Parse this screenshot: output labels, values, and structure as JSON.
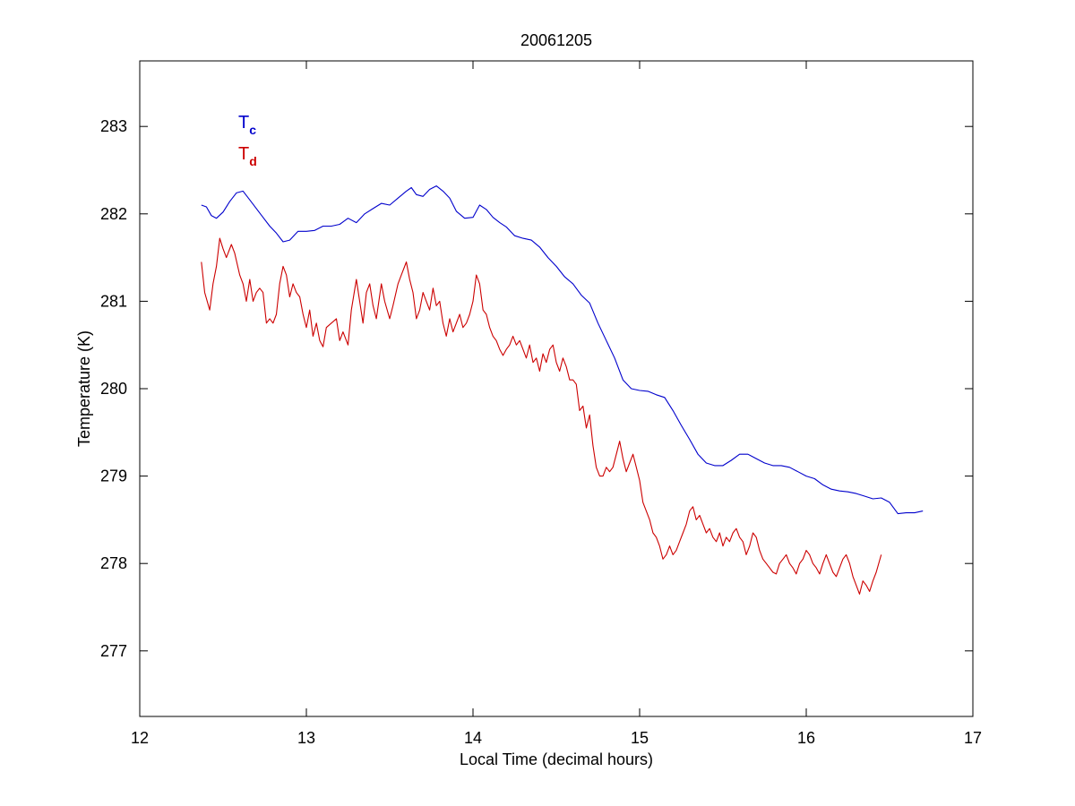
{
  "chart_data": {
    "type": "line",
    "title": "20061205",
    "xlabel": "Local Time (decimal hours)",
    "ylabel": "Temperature (K)",
    "xlim": [
      12,
      17
    ],
    "ylim": [
      276.25,
      283.75
    ],
    "xticks": [
      12,
      13,
      14,
      15,
      16,
      17
    ],
    "yticks": [
      277,
      278,
      279,
      280,
      281,
      282,
      283
    ],
    "grid": false,
    "legend_position": "top-left",
    "series": [
      {
        "name": "T",
        "subscript": "c",
        "color": "#0000cc",
        "points": [
          [
            12.37,
            282.1
          ],
          [
            12.4,
            282.08
          ],
          [
            12.43,
            281.98
          ],
          [
            12.46,
            281.95
          ],
          [
            12.5,
            282.02
          ],
          [
            12.54,
            282.14
          ],
          [
            12.58,
            282.24
          ],
          [
            12.62,
            282.26
          ],
          [
            12.66,
            282.16
          ],
          [
            12.7,
            282.06
          ],
          [
            12.74,
            281.96
          ],
          [
            12.78,
            281.86
          ],
          [
            12.82,
            281.78
          ],
          [
            12.86,
            281.68
          ],
          [
            12.9,
            281.7
          ],
          [
            12.95,
            281.8
          ],
          [
            13.0,
            281.8
          ],
          [
            13.05,
            281.81
          ],
          [
            13.1,
            281.86
          ],
          [
            13.15,
            281.86
          ],
          [
            13.2,
            281.88
          ],
          [
            13.25,
            281.95
          ],
          [
            13.3,
            281.9
          ],
          [
            13.35,
            282.0
          ],
          [
            13.4,
            282.06
          ],
          [
            13.45,
            282.12
          ],
          [
            13.5,
            282.1
          ],
          [
            13.55,
            282.18
          ],
          [
            13.6,
            282.26
          ],
          [
            13.63,
            282.3
          ],
          [
            13.66,
            282.22
          ],
          [
            13.7,
            282.2
          ],
          [
            13.74,
            282.28
          ],
          [
            13.78,
            282.32
          ],
          [
            13.82,
            282.26
          ],
          [
            13.86,
            282.18
          ],
          [
            13.9,
            282.03
          ],
          [
            13.95,
            281.95
          ],
          [
            14.0,
            281.96
          ],
          [
            14.04,
            282.1
          ],
          [
            14.08,
            282.05
          ],
          [
            14.12,
            281.96
          ],
          [
            14.16,
            281.9
          ],
          [
            14.2,
            281.85
          ],
          [
            14.25,
            281.75
          ],
          [
            14.3,
            281.72
          ],
          [
            14.35,
            281.7
          ],
          [
            14.4,
            281.62
          ],
          [
            14.45,
            281.5
          ],
          [
            14.5,
            281.4
          ],
          [
            14.55,
            281.28
          ],
          [
            14.6,
            281.2
          ],
          [
            14.65,
            281.07
          ],
          [
            14.7,
            280.98
          ],
          [
            14.75,
            280.75
          ],
          [
            14.8,
            280.55
          ],
          [
            14.85,
            280.35
          ],
          [
            14.9,
            280.1
          ],
          [
            14.95,
            280.0
          ],
          [
            15.0,
            279.98
          ],
          [
            15.05,
            279.97
          ],
          [
            15.1,
            279.93
          ],
          [
            15.15,
            279.9
          ],
          [
            15.2,
            279.75
          ],
          [
            15.25,
            279.58
          ],
          [
            15.3,
            279.42
          ],
          [
            15.35,
            279.25
          ],
          [
            15.4,
            279.15
          ],
          [
            15.45,
            279.12
          ],
          [
            15.5,
            279.12
          ],
          [
            15.55,
            279.18
          ],
          [
            15.6,
            279.25
          ],
          [
            15.65,
            279.25
          ],
          [
            15.7,
            279.2
          ],
          [
            15.75,
            279.15
          ],
          [
            15.8,
            279.12
          ],
          [
            15.85,
            279.12
          ],
          [
            15.9,
            279.1
          ],
          [
            15.95,
            279.05
          ],
          [
            16.0,
            279.0
          ],
          [
            16.05,
            278.97
          ],
          [
            16.1,
            278.9
          ],
          [
            16.15,
            278.85
          ],
          [
            16.2,
            278.83
          ],
          [
            16.25,
            278.82
          ],
          [
            16.3,
            278.8
          ],
          [
            16.35,
            278.77
          ],
          [
            16.4,
            278.74
          ],
          [
            16.45,
            278.75
          ],
          [
            16.5,
            278.7
          ],
          [
            16.55,
            278.57
          ],
          [
            16.6,
            278.58
          ],
          [
            16.65,
            278.58
          ],
          [
            16.7,
            278.6
          ]
        ]
      },
      {
        "name": "T",
        "subscript": "d",
        "color": "#cc0000",
        "points": [
          [
            12.37,
            281.45
          ],
          [
            12.39,
            281.1
          ],
          [
            12.42,
            280.9
          ],
          [
            12.44,
            281.2
          ],
          [
            12.46,
            281.4
          ],
          [
            12.48,
            281.72
          ],
          [
            12.5,
            281.6
          ],
          [
            12.52,
            281.5
          ],
          [
            12.55,
            281.65
          ],
          [
            12.57,
            281.55
          ],
          [
            12.6,
            281.3
          ],
          [
            12.62,
            281.2
          ],
          [
            12.64,
            281.0
          ],
          [
            12.66,
            281.25
          ],
          [
            12.68,
            281.0
          ],
          [
            12.7,
            281.1
          ],
          [
            12.72,
            281.15
          ],
          [
            12.74,
            281.1
          ],
          [
            12.76,
            280.75
          ],
          [
            12.78,
            280.8
          ],
          [
            12.8,
            280.75
          ],
          [
            12.82,
            280.85
          ],
          [
            12.84,
            281.2
          ],
          [
            12.86,
            281.4
          ],
          [
            12.88,
            281.3
          ],
          [
            12.9,
            281.05
          ],
          [
            12.92,
            281.2
          ],
          [
            12.94,
            281.1
          ],
          [
            12.96,
            281.05
          ],
          [
            12.98,
            280.85
          ],
          [
            13.0,
            280.7
          ],
          [
            13.02,
            280.9
          ],
          [
            13.04,
            280.6
          ],
          [
            13.06,
            280.75
          ],
          [
            13.08,
            280.55
          ],
          [
            13.1,
            280.48
          ],
          [
            13.12,
            280.7
          ],
          [
            13.15,
            280.75
          ],
          [
            13.18,
            280.8
          ],
          [
            13.2,
            280.55
          ],
          [
            13.22,
            280.65
          ],
          [
            13.25,
            280.5
          ],
          [
            13.27,
            280.9
          ],
          [
            13.3,
            281.25
          ],
          [
            13.32,
            281.0
          ],
          [
            13.34,
            280.75
          ],
          [
            13.36,
            281.1
          ],
          [
            13.38,
            281.2
          ],
          [
            13.4,
            280.95
          ],
          [
            13.42,
            280.8
          ],
          [
            13.45,
            281.2
          ],
          [
            13.47,
            281.0
          ],
          [
            13.5,
            280.8
          ],
          [
            13.52,
            280.95
          ],
          [
            13.55,
            281.2
          ],
          [
            13.57,
            281.3
          ],
          [
            13.6,
            281.45
          ],
          [
            13.62,
            281.25
          ],
          [
            13.64,
            281.1
          ],
          [
            13.66,
            280.8
          ],
          [
            13.68,
            280.9
          ],
          [
            13.7,
            281.1
          ],
          [
            13.72,
            281.0
          ],
          [
            13.74,
            280.9
          ],
          [
            13.76,
            281.15
          ],
          [
            13.78,
            280.95
          ],
          [
            13.8,
            281.0
          ],
          [
            13.82,
            280.75
          ],
          [
            13.84,
            280.6
          ],
          [
            13.86,
            280.8
          ],
          [
            13.88,
            280.65
          ],
          [
            13.9,
            280.75
          ],
          [
            13.92,
            280.85
          ],
          [
            13.94,
            280.7
          ],
          [
            13.96,
            280.75
          ],
          [
            13.98,
            280.85
          ],
          [
            14.0,
            281.0
          ],
          [
            14.02,
            281.3
          ],
          [
            14.04,
            281.2
          ],
          [
            14.06,
            280.9
          ],
          [
            14.08,
            280.85
          ],
          [
            14.1,
            280.7
          ],
          [
            14.12,
            280.6
          ],
          [
            14.14,
            280.55
          ],
          [
            14.16,
            280.45
          ],
          [
            14.18,
            280.38
          ],
          [
            14.2,
            280.45
          ],
          [
            14.22,
            280.5
          ],
          [
            14.24,
            280.6
          ],
          [
            14.26,
            280.5
          ],
          [
            14.28,
            280.55
          ],
          [
            14.3,
            280.45
          ],
          [
            14.32,
            280.35
          ],
          [
            14.34,
            280.5
          ],
          [
            14.36,
            280.3
          ],
          [
            14.38,
            280.35
          ],
          [
            14.4,
            280.2
          ],
          [
            14.42,
            280.4
          ],
          [
            14.44,
            280.3
          ],
          [
            14.46,
            280.45
          ],
          [
            14.48,
            280.5
          ],
          [
            14.5,
            280.3
          ],
          [
            14.52,
            280.2
          ],
          [
            14.54,
            280.35
          ],
          [
            14.56,
            280.25
          ],
          [
            14.58,
            280.1
          ],
          [
            14.6,
            280.1
          ],
          [
            14.62,
            280.05
          ],
          [
            14.64,
            279.75
          ],
          [
            14.66,
            279.8
          ],
          [
            14.68,
            279.55
          ],
          [
            14.7,
            279.7
          ],
          [
            14.72,
            279.35
          ],
          [
            14.74,
            279.1
          ],
          [
            14.76,
            279.0
          ],
          [
            14.78,
            279.0
          ],
          [
            14.8,
            279.1
          ],
          [
            14.82,
            279.05
          ],
          [
            14.84,
            279.1
          ],
          [
            14.86,
            279.25
          ],
          [
            14.88,
            279.4
          ],
          [
            14.9,
            279.2
          ],
          [
            14.92,
            279.05
          ],
          [
            14.94,
            279.15
          ],
          [
            14.96,
            279.25
          ],
          [
            14.98,
            279.1
          ],
          [
            15.0,
            278.95
          ],
          [
            15.02,
            278.7
          ],
          [
            15.04,
            278.6
          ],
          [
            15.06,
            278.5
          ],
          [
            15.08,
            278.35
          ],
          [
            15.1,
            278.3
          ],
          [
            15.12,
            278.2
          ],
          [
            15.14,
            278.05
          ],
          [
            15.16,
            278.1
          ],
          [
            15.18,
            278.2
          ],
          [
            15.2,
            278.1
          ],
          [
            15.22,
            278.15
          ],
          [
            15.24,
            278.25
          ],
          [
            15.26,
            278.35
          ],
          [
            15.28,
            278.45
          ],
          [
            15.3,
            278.6
          ],
          [
            15.32,
            278.65
          ],
          [
            15.34,
            278.5
          ],
          [
            15.36,
            278.55
          ],
          [
            15.38,
            278.45
          ],
          [
            15.4,
            278.35
          ],
          [
            15.42,
            278.4
          ],
          [
            15.44,
            278.3
          ],
          [
            15.46,
            278.25
          ],
          [
            15.48,
            278.35
          ],
          [
            15.5,
            278.2
          ],
          [
            15.52,
            278.3
          ],
          [
            15.54,
            278.25
          ],
          [
            15.56,
            278.35
          ],
          [
            15.58,
            278.4
          ],
          [
            15.6,
            278.3
          ],
          [
            15.62,
            278.25
          ],
          [
            15.64,
            278.1
          ],
          [
            15.66,
            278.2
          ],
          [
            15.68,
            278.35
          ],
          [
            15.7,
            278.3
          ],
          [
            15.72,
            278.15
          ],
          [
            15.74,
            278.05
          ],
          [
            15.76,
            278.0
          ],
          [
            15.78,
            277.95
          ],
          [
            15.8,
            277.9
          ],
          [
            15.82,
            277.88
          ],
          [
            15.84,
            278.0
          ],
          [
            15.86,
            278.05
          ],
          [
            15.88,
            278.1
          ],
          [
            15.9,
            278.0
          ],
          [
            15.92,
            277.95
          ],
          [
            15.94,
            277.88
          ],
          [
            15.96,
            278.0
          ],
          [
            15.98,
            278.05
          ],
          [
            16.0,
            278.15
          ],
          [
            16.02,
            278.1
          ],
          [
            16.04,
            278.0
          ],
          [
            16.06,
            277.95
          ],
          [
            16.08,
            277.88
          ],
          [
            16.1,
            278.0
          ],
          [
            16.12,
            278.1
          ],
          [
            16.14,
            278.0
          ],
          [
            16.16,
            277.9
          ],
          [
            16.18,
            277.85
          ],
          [
            16.2,
            277.95
          ],
          [
            16.22,
            278.05
          ],
          [
            16.24,
            278.1
          ],
          [
            16.26,
            278.0
          ],
          [
            16.28,
            277.85
          ],
          [
            16.3,
            277.75
          ],
          [
            16.32,
            277.65
          ],
          [
            16.34,
            277.8
          ],
          [
            16.36,
            277.75
          ],
          [
            16.38,
            277.68
          ],
          [
            16.4,
            277.8
          ],
          [
            16.42,
            277.9
          ],
          [
            16.45,
            278.1
          ]
        ]
      }
    ]
  }
}
